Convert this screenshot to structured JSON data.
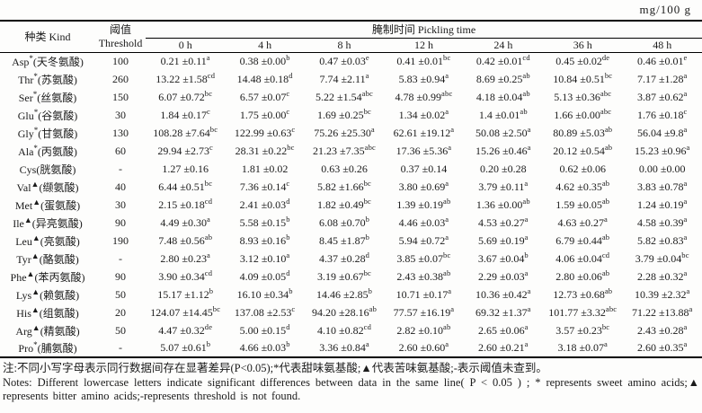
{
  "unit": "mg/100 g",
  "table": {
    "kind_header": "种类 Kind",
    "threshold_header_cn": "阈值",
    "threshold_header_en": "Threshold",
    "pickling_header": "腌制时间 Pickling time",
    "time_columns": [
      "0 h",
      "4 h",
      "8 h",
      "12 h",
      "24 h",
      "36 h",
      "48 h"
    ],
    "rows": [
      {
        "abbr": "Asp",
        "mark": "*",
        "cn": "(天冬氨酸)",
        "threshold": "100",
        "values": [
          [
            "0.21 ±0.11",
            "a"
          ],
          [
            "0.38 ±0.00",
            "b"
          ],
          [
            "0.47 ±0.03",
            "e"
          ],
          [
            "0.41 ±0.01",
            "bc"
          ],
          [
            "0.42 ±0.01",
            "cd"
          ],
          [
            "0.45 ±0.02",
            "de"
          ],
          [
            "0.46 ±0.01",
            "e"
          ]
        ]
      },
      {
        "abbr": "Thr",
        "mark": "*",
        "cn": "(苏氨酸)",
        "threshold": "260",
        "values": [
          [
            "13.22 ±1.58",
            "cd"
          ],
          [
            "14.48 ±0.18",
            "d"
          ],
          [
            "7.74 ±2.11",
            "a"
          ],
          [
            "5.83 ±0.94",
            "a"
          ],
          [
            "8.69 ±0.25",
            "ab"
          ],
          [
            "10.84 ±0.51",
            "bc"
          ],
          [
            "7.17 ±1.28",
            "a"
          ]
        ]
      },
      {
        "abbr": "Ser",
        "mark": "*",
        "cn": "(丝氨酸)",
        "threshold": "150",
        "values": [
          [
            "6.07 ±0.72",
            "bc"
          ],
          [
            "6.57 ±0.07",
            "c"
          ],
          [
            "5.22 ±1.54",
            "abc"
          ],
          [
            "4.78 ±0.99",
            "abc"
          ],
          [
            "4.18 ±0.04",
            "ab"
          ],
          [
            "5.13 ±0.36",
            "abc"
          ],
          [
            "3.87 ±0.62",
            "a"
          ]
        ]
      },
      {
        "abbr": "Glu",
        "mark": "*",
        "cn": "(谷氨酸)",
        "threshold": "30",
        "values": [
          [
            "1.84 ±0.17",
            "c"
          ],
          [
            "1.75 ±0.00",
            "c"
          ],
          [
            "1.69 ±0.25",
            "bc"
          ],
          [
            "1.34 ±0.02",
            "a"
          ],
          [
            "1.4 ±0.01",
            "ab"
          ],
          [
            "1.66 ±0.00",
            "abc"
          ],
          [
            "1.76 ±0.18",
            "c"
          ]
        ]
      },
      {
        "abbr": "Gly",
        "mark": "*",
        "cn": "(甘氨酸)",
        "threshold": "130",
        "values": [
          [
            "108.28 ±7.64",
            "bc"
          ],
          [
            "122.99 ±0.63",
            "c"
          ],
          [
            "75.26 ±25.30",
            "a"
          ],
          [
            "62.61 ±19.12",
            "a"
          ],
          [
            "50.08 ±2.50",
            "a"
          ],
          [
            "80.89 ±5.03",
            "ab"
          ],
          [
            "56.04 ±9.8",
            "a"
          ]
        ]
      },
      {
        "abbr": "Ala",
        "mark": "*",
        "cn": "(丙氨酸)",
        "threshold": "60",
        "values": [
          [
            "29.94 ±2.73",
            "c"
          ],
          [
            "28.31 ±0.22",
            "bc"
          ],
          [
            "21.23 ±7.35",
            "abc"
          ],
          [
            "17.36 ±5.36",
            "a"
          ],
          [
            "15.26 ±0.46",
            "a"
          ],
          [
            "20.12 ±0.54",
            "ab"
          ],
          [
            "15.23 ±0.96",
            "a"
          ]
        ]
      },
      {
        "abbr": "Cys",
        "mark": "",
        "cn": "(胱氨酸)",
        "threshold": "-",
        "values": [
          [
            "1.27 ±0.16",
            ""
          ],
          [
            "1.81 ±0.02",
            ""
          ],
          [
            "0.63 ±0.26",
            ""
          ],
          [
            "0.37 ±0.14",
            ""
          ],
          [
            "0.20 ±0.28",
            ""
          ],
          [
            "0.62 ±0.06",
            ""
          ],
          [
            "0.00 ±0.00",
            ""
          ]
        ]
      },
      {
        "abbr": "Val",
        "mark": "▲",
        "cn": "(缬氨酸)",
        "threshold": "40",
        "values": [
          [
            "6.44 ±0.51",
            "bc"
          ],
          [
            "7.36 ±0.14",
            "c"
          ],
          [
            "5.82 ±1.66",
            "bc"
          ],
          [
            "3.80 ±0.69",
            "a"
          ],
          [
            "3.79 ±0.11",
            "a"
          ],
          [
            "4.62 ±0.35",
            "ab"
          ],
          [
            "3.83 ±0.78",
            "a"
          ]
        ]
      },
      {
        "abbr": "Met",
        "mark": "▲",
        "cn": "(蛋氨酸)",
        "threshold": "30",
        "values": [
          [
            "2.15 ±0.18",
            "cd"
          ],
          [
            "2.41 ±0.03",
            "d"
          ],
          [
            "1.82 ±0.49",
            "bc"
          ],
          [
            "1.39 ±0.19",
            "ab"
          ],
          [
            "1.36 ±0.00",
            "ab"
          ],
          [
            "1.59 ±0.05",
            "ab"
          ],
          [
            "1.24 ±0.19",
            "a"
          ]
        ]
      },
      {
        "abbr": "Ile",
        "mark": "▲",
        "cn": "(异亮氨酸)",
        "threshold": "90",
        "values": [
          [
            "4.49 ±0.30",
            "a"
          ],
          [
            "5.58 ±0.15",
            "b"
          ],
          [
            "6.08 ±0.70",
            "b"
          ],
          [
            "4.46 ±0.03",
            "a"
          ],
          [
            "4.53 ±0.27",
            "a"
          ],
          [
            "4.63 ±0.27",
            "a"
          ],
          [
            "4.58 ±0.39",
            "a"
          ]
        ]
      },
      {
        "abbr": "Leu",
        "mark": "▲",
        "cn": "(亮氨酸)",
        "threshold": "190",
        "values": [
          [
            "7.48 ±0.56",
            "ab"
          ],
          [
            "8.93 ±0.16",
            "b"
          ],
          [
            "8.45 ±1.87",
            "b"
          ],
          [
            "5.94 ±0.72",
            "a"
          ],
          [
            "5.69 ±0.19",
            "a"
          ],
          [
            "6.79 ±0.44",
            "ab"
          ],
          [
            "5.82 ±0.83",
            "a"
          ]
        ]
      },
      {
        "abbr": "Tyr",
        "mark": "▲",
        "cn": "(酪氨酸)",
        "threshold": "-",
        "values": [
          [
            "2.80 ±0.23",
            "a"
          ],
          [
            "3.12 ±0.10",
            "a"
          ],
          [
            "4.37 ±0.28",
            "d"
          ],
          [
            "3.85 ±0.07",
            "bc"
          ],
          [
            "3.67 ±0.04",
            "b"
          ],
          [
            "4.06 ±0.04",
            "cd"
          ],
          [
            "3.79 ±0.04",
            "bc"
          ]
        ]
      },
      {
        "abbr": "Phe",
        "mark": "▲",
        "cn": "(苯丙氨酸)",
        "threshold": "90",
        "values": [
          [
            "3.90 ±0.34",
            "cd"
          ],
          [
            "4.09 ±0.05",
            "d"
          ],
          [
            "3.19 ±0.67",
            "bc"
          ],
          [
            "2.43 ±0.38",
            "ab"
          ],
          [
            "2.29 ±0.03",
            "a"
          ],
          [
            "2.80 ±0.06",
            "ab"
          ],
          [
            "2.28 ±0.32",
            "a"
          ]
        ]
      },
      {
        "abbr": "Lys",
        "mark": "▲",
        "cn": "(赖氨酸)",
        "threshold": "50",
        "values": [
          [
            "15.17 ±1.12",
            "b"
          ],
          [
            "16.10 ±0.34",
            "b"
          ],
          [
            "14.46 ±2.85",
            "b"
          ],
          [
            "10.71 ±0.17",
            "a"
          ],
          [
            "10.36 ±0.42",
            "a"
          ],
          [
            "12.73 ±0.68",
            "ab"
          ],
          [
            "10.39 ±2.32",
            "a"
          ]
        ]
      },
      {
        "abbr": "His",
        "mark": "▲",
        "cn": "(组氨酸)",
        "threshold": "20",
        "values": [
          [
            "124.07 ±14.45",
            "bc"
          ],
          [
            "137.08 ±2.53",
            "c"
          ],
          [
            "94.20 ±28.16",
            "ab"
          ],
          [
            "77.57 ±16.19",
            "a"
          ],
          [
            "69.32 ±1.37",
            "a"
          ],
          [
            "101.77 ±3.32",
            "abc"
          ],
          [
            "71.22 ±13.88",
            "a"
          ]
        ]
      },
      {
        "abbr": "Arg",
        "mark": "▲",
        "cn": "(精氨酸)",
        "threshold": "50",
        "values": [
          [
            "4.47 ±0.32",
            "de"
          ],
          [
            "5.00 ±0.15",
            "d"
          ],
          [
            "4.10 ±0.82",
            "cd"
          ],
          [
            "2.82 ±0.10",
            "ab"
          ],
          [
            "2.65 ±0.06",
            "a"
          ],
          [
            "3.57 ±0.23",
            "bc"
          ],
          [
            "2.43 ±0.28",
            "a"
          ]
        ]
      },
      {
        "abbr": "Pro",
        "mark": "*",
        "cn": "(脯氨酸)",
        "threshold": "-",
        "values": [
          [
            "5.07 ±0.61",
            "b"
          ],
          [
            "4.66 ±0.03",
            "b"
          ],
          [
            "3.36 ±0.84",
            "a"
          ],
          [
            "2.60 ±0.60",
            "a"
          ],
          [
            "2.60 ±0.21",
            "a"
          ],
          [
            "3.18 ±0.07",
            "a"
          ],
          [
            "2.60 ±0.35",
            "a"
          ]
        ]
      }
    ]
  },
  "notes": {
    "cn": "注:不同小写字母表示同行数据间存在显著差异(P<0.05);*代表甜味氨基酸;▲代表苦味氨基酸;-表示阈值未查到。",
    "en": "Notes: Different lowercase letters indicate significant differences between data in the same line( P < 0.05 ) ; * represents sweet amino acids;▲ represents bitter amino acids;-represents threshold is not found."
  }
}
